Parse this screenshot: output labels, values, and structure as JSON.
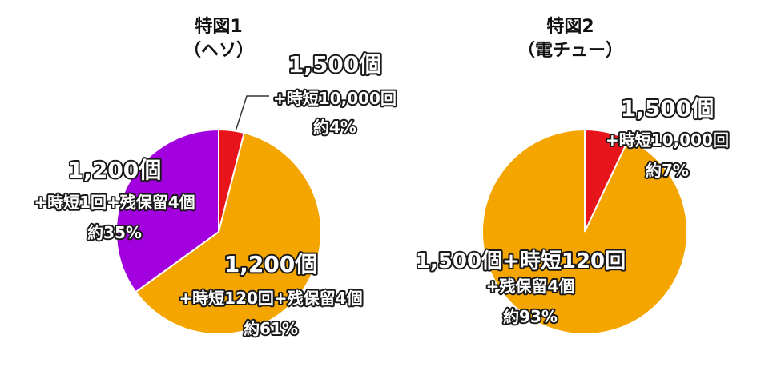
{
  "chart_data": [
    {
      "type": "pie",
      "title": "特図1",
      "subtitle": "（ヘソ）",
      "slices": [
        {
          "value": 4,
          "color": "#e8141b",
          "lines": [
            "1,500個",
            "+時短10,000回",
            "約4%"
          ]
        },
        {
          "value": 61,
          "color": "#f4a500",
          "lines": [
            "1,200個",
            "+時短120回+残保留4個",
            "約61%"
          ]
        },
        {
          "value": 35,
          "color": "#a300e0",
          "lines": [
            "1,200個",
            "+時短1回+残保留4個",
            "約35%"
          ]
        }
      ]
    },
    {
      "type": "pie",
      "title": "特図2",
      "subtitle": "（電チュー）",
      "slices": [
        {
          "value": 7,
          "color": "#e8141b",
          "lines": [
            "1,500個",
            "+時短10,000回",
            "約7%"
          ]
        },
        {
          "value": 93,
          "color": "#f4a500",
          "lines": [
            "1,500個+時短120回",
            "+残保留4個",
            "約93%"
          ]
        }
      ]
    }
  ]
}
